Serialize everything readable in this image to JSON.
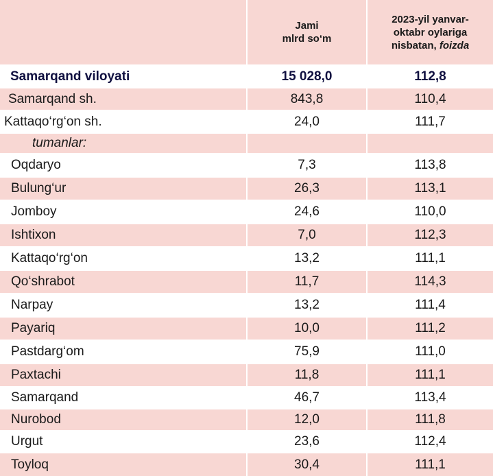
{
  "header": {
    "col2_line1": "Jami",
    "col2_line2": "mlrd so‘m",
    "col3_line1": "2023-yil yanvar-",
    "col3_line2": "oktabr oylariga",
    "col3_line3": "nisbatan, ",
    "col3_italic": "foizda"
  },
  "rows": [
    {
      "name": "Samarqand viloyati",
      "value": "15 028,0",
      "pct": "112,8"
    },
    {
      "name": "Samarqand sh.",
      "value": "843,8",
      "pct": "110,4"
    },
    {
      "name": "Kattaqo‘rg‘on sh.",
      "value": "24,0",
      "pct": "111,7"
    },
    {
      "name": "tumanlar:",
      "value": "",
      "pct": ""
    },
    {
      "name": "Oqdaryo",
      "value": "7,3",
      "pct": "113,8"
    },
    {
      "name": "Bulung‘ur",
      "value": "26,3",
      "pct": "113,1"
    },
    {
      "name": "Jomboy",
      "value": "24,6",
      "pct": "110,0"
    },
    {
      "name": "Ishtixon",
      "value": "7,0",
      "pct": "112,3"
    },
    {
      "name": "Kattaqo‘rg‘on",
      "value": "13,2",
      "pct": "111,1"
    },
    {
      "name": "Qo‘shrabot",
      "value": "11,7",
      "pct": "114,3"
    },
    {
      "name": "Narpay",
      "value": "13,2",
      "pct": "111,4"
    },
    {
      "name": "Payariq",
      "value": "10,0",
      "pct": "111,2"
    },
    {
      "name": "Pastdarg‘om",
      "value": "75,9",
      "pct": "111,0"
    },
    {
      "name": "Paxtachi",
      "value": "11,8",
      "pct": "111,1"
    },
    {
      "name": "Samarqand",
      "value": "46,7",
      "pct": "113,4"
    },
    {
      "name": "Nurobod",
      "value": "12,0",
      "pct": "111,8"
    },
    {
      "name": "Urgut",
      "value": "23,6",
      "pct": "112,4"
    },
    {
      "name": "Toyloq",
      "value": "30,4",
      "pct": "111,1"
    }
  ]
}
